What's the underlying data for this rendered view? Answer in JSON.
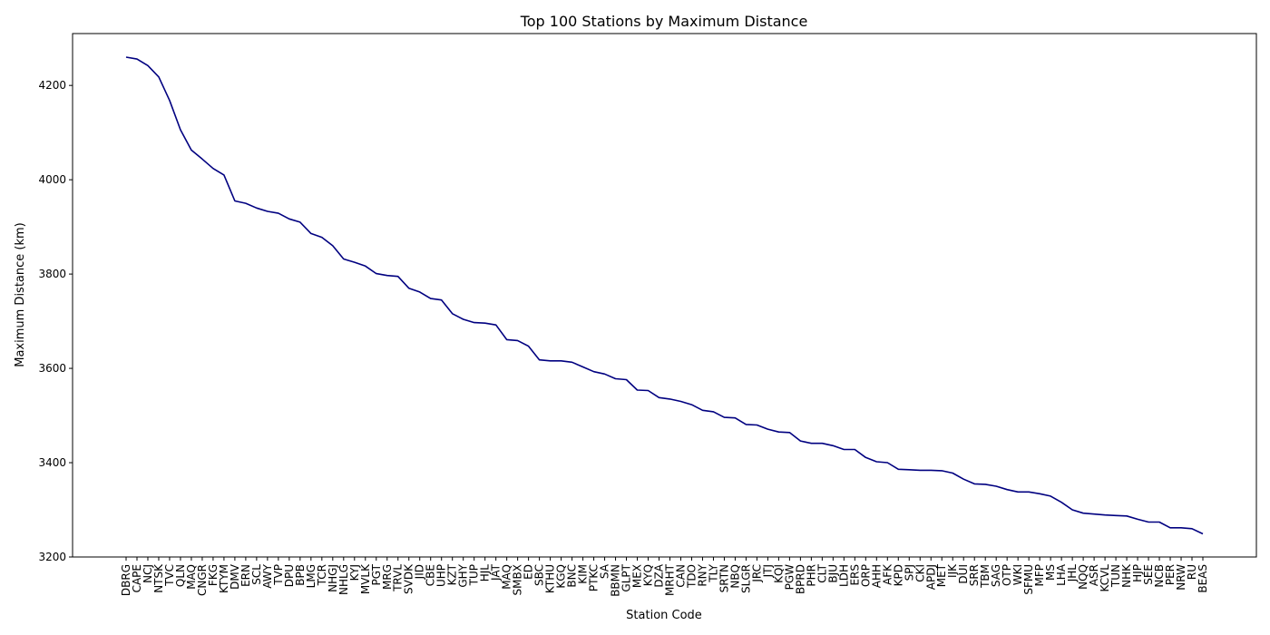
{
  "chart_data": {
    "type": "line",
    "title": "Top 100 Stations by Maximum Distance",
    "xlabel": "Station Code",
    "ylabel": "Maximum Distance (km)",
    "ylim": [
      3200,
      4310
    ],
    "yticks": [
      3200,
      3400,
      3600,
      3800,
      4000,
      4200
    ],
    "grid": false,
    "line_color": "#000080",
    "categories": [
      "DBRG",
      "CAPE",
      "NCJ",
      "NTSK",
      "TVC",
      "QLN",
      "MAQ",
      "CNGR",
      "FKG",
      "KTYM",
      "DMV",
      "ERN",
      "SCL",
      "AWY",
      "TVP",
      "DPU",
      "BPB",
      "LMG",
      "TCR",
      "NHGJ",
      "NHLG",
      "KYJ",
      "MVLK",
      "PGT",
      "MRG",
      "TRVL",
      "SVDK",
      "JID",
      "CBE",
      "UHP",
      "KZT",
      "GHY",
      "TUP",
      "HJL",
      "JAT",
      "MAQ",
      "SMBX",
      "ED",
      "SBC",
      "KTHU",
      "KGQ",
      "BNC",
      "KIM",
      "PTKC",
      "SA",
      "BBMN",
      "GLPT",
      "MEX",
      "KYQ",
      "DZA",
      "MRHT",
      "CAN",
      "TDO",
      "RNY",
      "TLY",
      "SRTN",
      "NBQ",
      "SLGR",
      "JRC",
      "JTJ",
      "KQI",
      "PGW",
      "BPRD",
      "PHR",
      "CLT",
      "BJU",
      "LDH",
      "ERS",
      "ORP",
      "AHH",
      "AFK",
      "KPD",
      "SPJ",
      "CKI",
      "APDJ",
      "MET",
      "IJK",
      "DUI",
      "SRR",
      "TBM",
      "SAG",
      "OTP",
      "WKI",
      "SFMU",
      "MFP",
      "MS",
      "LHA",
      "JHL",
      "NQQ",
      "ASR",
      "KCVL",
      "TUN",
      "NHK",
      "HJP",
      "SEE",
      "NCB",
      "PER",
      "NRW",
      "RU",
      "BEAS"
    ],
    "values": [
      4260,
      4256,
      4242,
      4218,
      4168,
      4106,
      4063,
      4044,
      4024,
      4010,
      3955,
      3950,
      3940,
      3933,
      3929,
      3917,
      3910,
      3886,
      3878,
      3860,
      3832,
      3825,
      3817,
      3801,
      3797,
      3795,
      3770,
      3762,
      3748,
      3745,
      3716,
      3704,
      3697,
      3696,
      3692,
      3661,
      3659,
      3647,
      3618,
      3616,
      3616,
      3613,
      3603,
      3593,
      3588,
      3578,
      3576,
      3554,
      3553,
      3538,
      3535,
      3530,
      3523,
      3511,
      3508,
      3496,
      3495,
      3481,
      3480,
      3471,
      3465,
      3464,
      3446,
      3441,
      3441,
      3436,
      3428,
      3428,
      3411,
      3402,
      3400,
      3386,
      3385,
      3384,
      3384,
      3383,
      3378,
      3365,
      3355,
      3354,
      3350,
      3343,
      3338,
      3338,
      3334,
      3329,
      3316,
      3300,
      3293,
      3291,
      3289,
      3288,
      3287,
      3280,
      3274,
      3274,
      3262,
      3262,
      3260,
      3249
    ]
  }
}
